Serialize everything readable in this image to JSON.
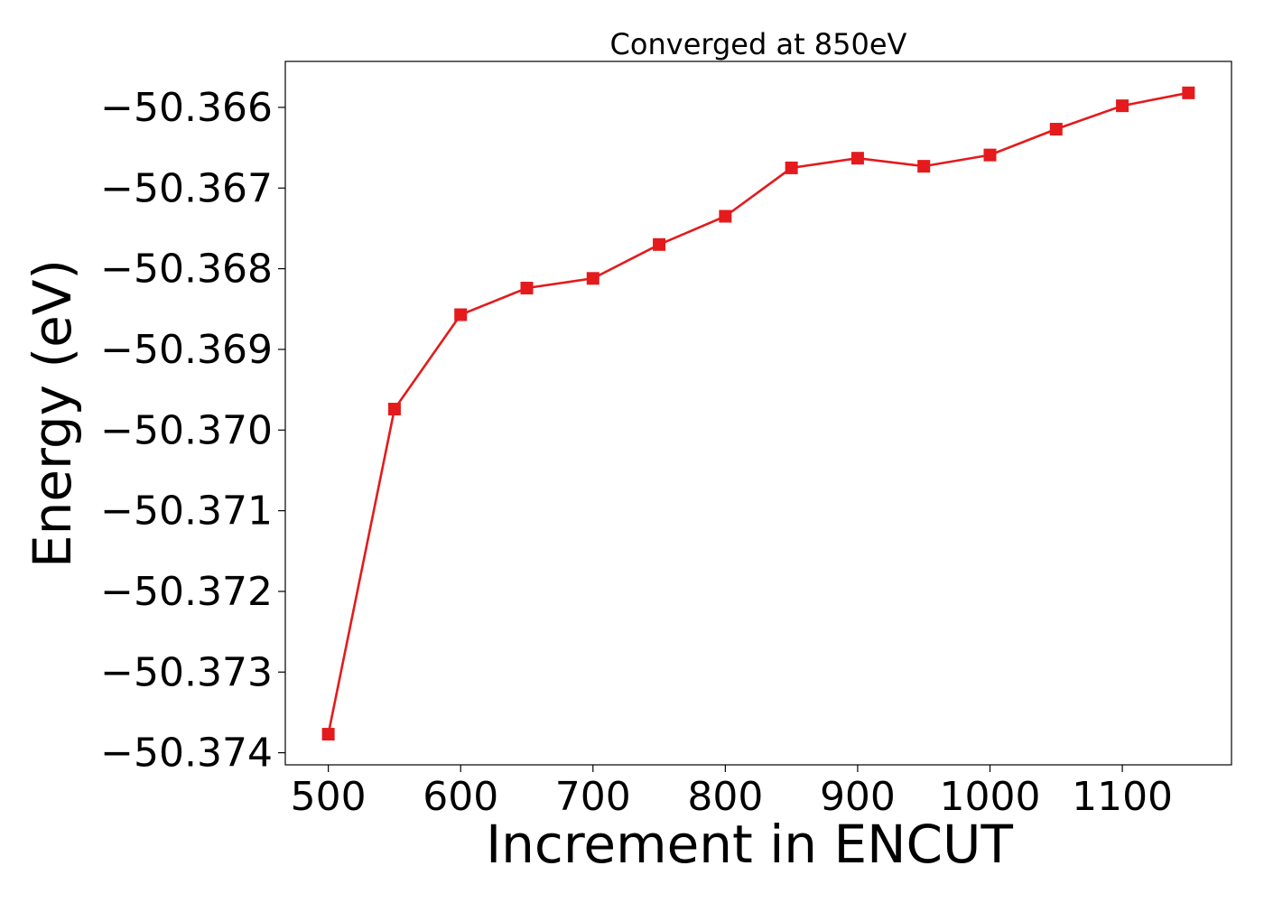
{
  "chart_data": {
    "type": "line",
    "title": "Converged at 850eV",
    "xlabel": "Increment in ENCUT",
    "ylabel": "Energy (eV)",
    "x": [
      500,
      550,
      600,
      650,
      700,
      750,
      800,
      850,
      900,
      950,
      1000,
      1050,
      1100,
      1150
    ],
    "series": [
      {
        "values": [
          -50.37377,
          -50.36974,
          -50.36857,
          -50.36824,
          -50.36812,
          -50.3677,
          -50.36735,
          -50.36675,
          -50.36663,
          -50.36673,
          -50.36659,
          -50.36627,
          -50.36598,
          -50.36582
        ],
        "color": "#e41a1c",
        "marker": "square"
      }
    ],
    "xticks": [
      500,
      600,
      700,
      800,
      900,
      1000,
      1100
    ],
    "xtick_labels": [
      "500",
      "600",
      "700",
      "800",
      "900",
      "1000",
      "1100"
    ],
    "yticks": [
      -50.374,
      -50.373,
      -50.372,
      -50.371,
      -50.37,
      -50.369,
      -50.368,
      -50.367,
      -50.366
    ],
    "ytick_labels": [
      "−50.374",
      "−50.373",
      "−50.372",
      "−50.371",
      "−50.370",
      "−50.369",
      "−50.368",
      "−50.367",
      "−50.366"
    ],
    "xlim": [
      467.5,
      1182.5
    ],
    "ylim": [
      -50.37415,
      -50.36543
    ],
    "grid": false,
    "legend": false
  }
}
